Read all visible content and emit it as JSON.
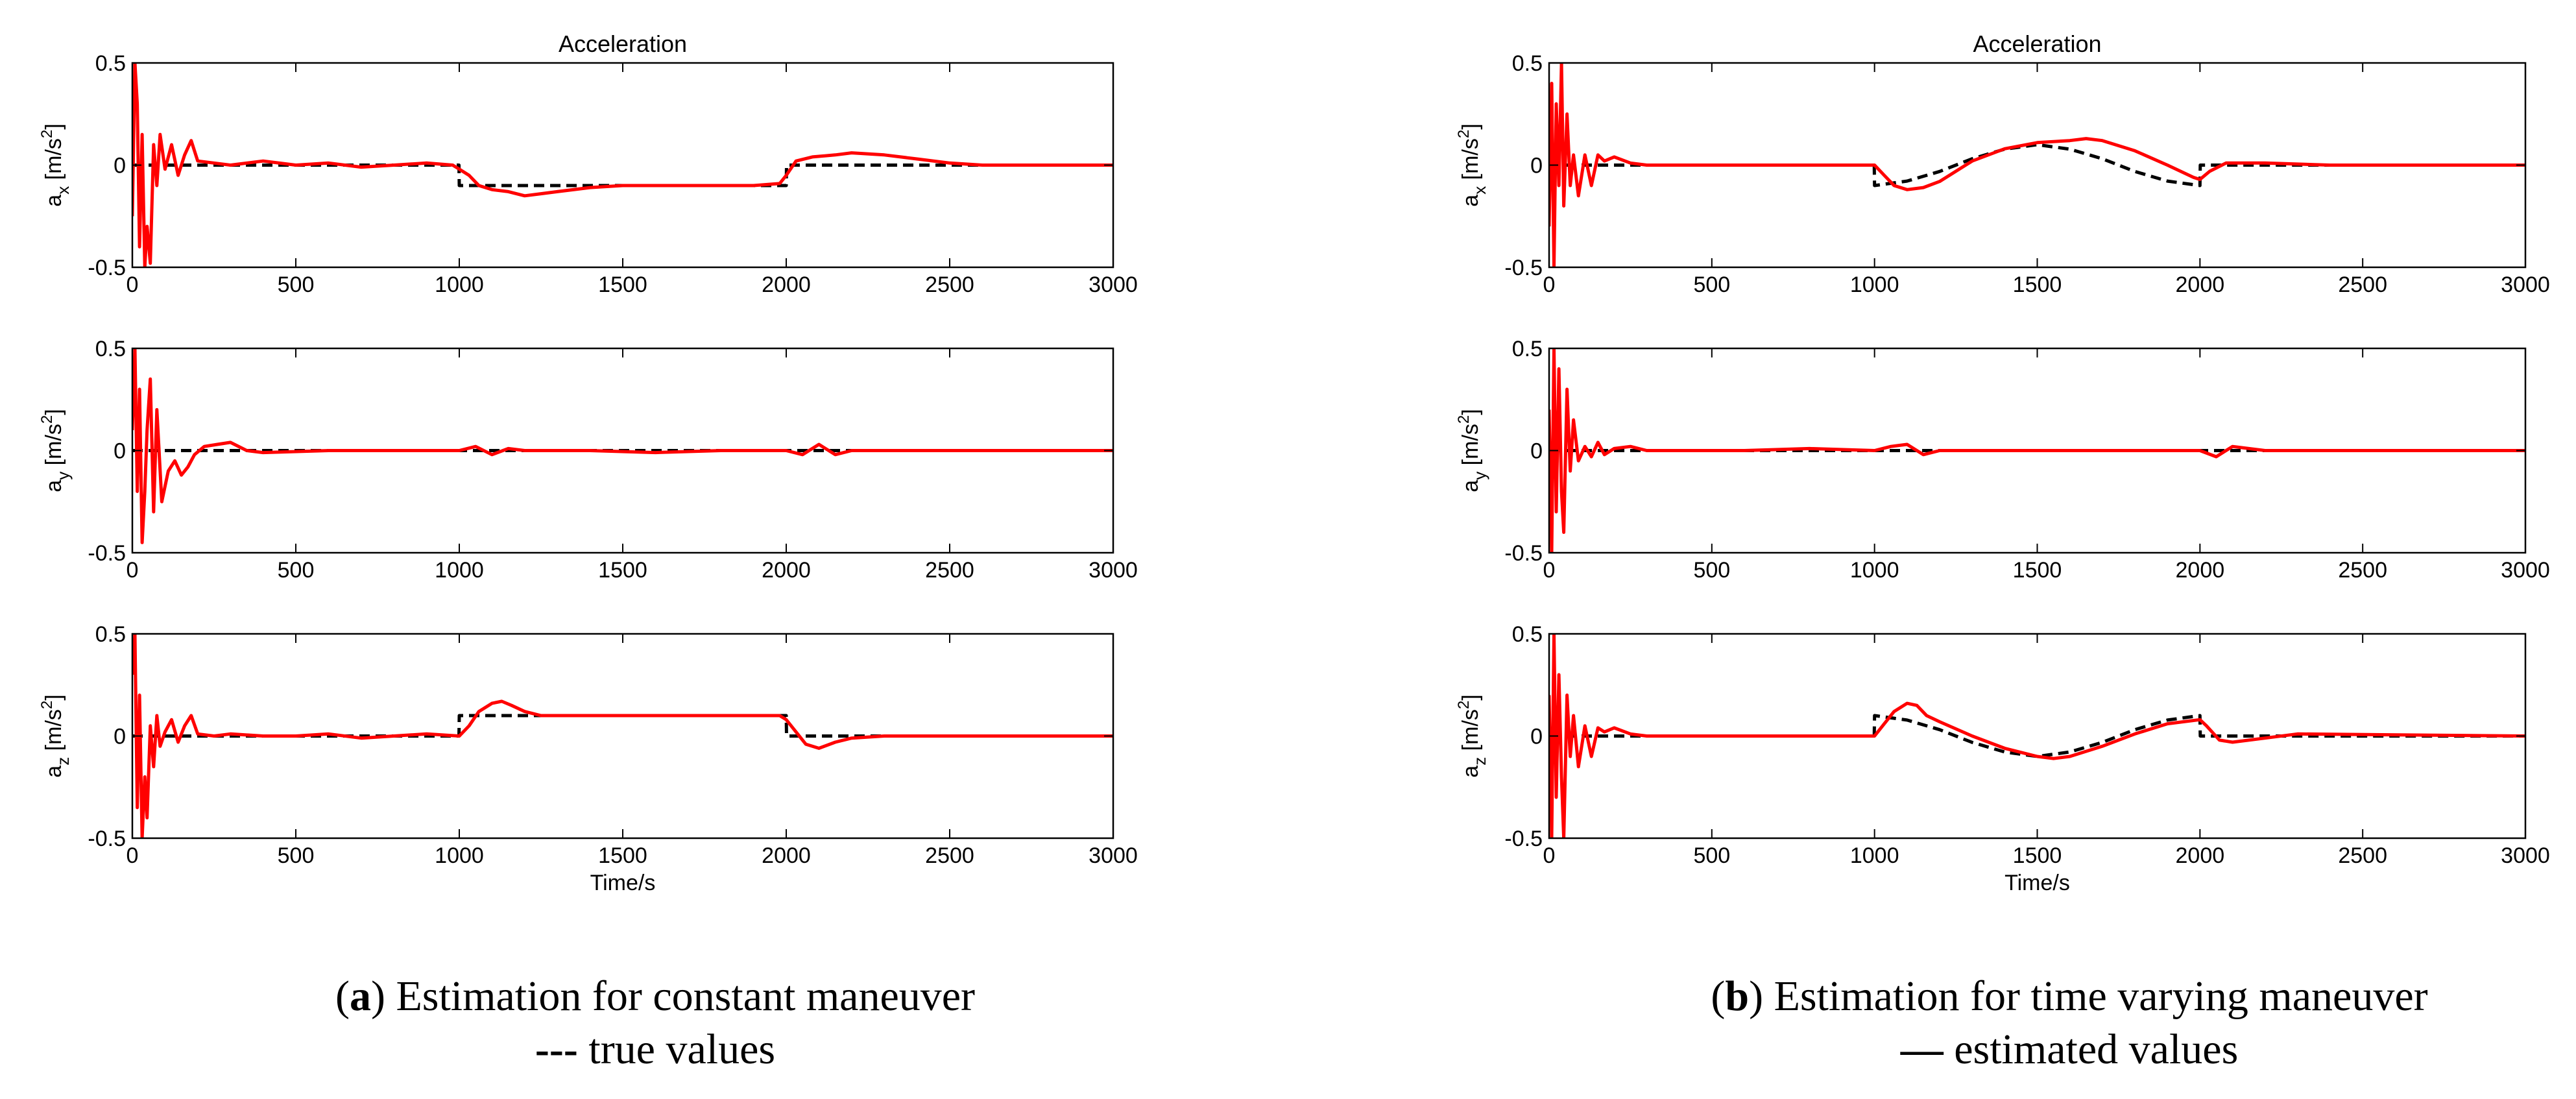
{
  "chart_data": [
    {
      "type": "line",
      "panel": "a",
      "title": "Acceleration",
      "xlabel": "Time/s",
      "xlim": [
        0,
        3000
      ],
      "xticks": [
        "0",
        "500",
        "1000",
        "1500",
        "2000",
        "2500",
        "3000"
      ],
      "subplots": [
        {
          "ylabel_main": "a",
          "ylabel_sub": "x",
          "ylabel_unit": " [m/s",
          "ylabel_sup": "2",
          "ylabel_end": "]",
          "ylim": [
            -0.5,
            0.5
          ],
          "yticks": [
            "0.5",
            "0",
            "-0.5"
          ],
          "series": [
            {
              "name": "true values",
              "style": "dashed",
              "color": "#000000",
              "x": [
                0,
                999,
                1000,
                2000,
                2001,
                3000
              ],
              "y": [
                0,
                0,
                -0.1,
                -0.1,
                0,
                0
              ]
            },
            {
              "name": "estimated values",
              "style": "solid",
              "color": "#ff0000",
              "x": [
                0,
                8,
                15,
                22,
                30,
                38,
                45,
                55,
                65,
                75,
                85,
                100,
                120,
                140,
                160,
                180,
                200,
                250,
                300,
                400,
                500,
                600,
                700,
                800,
                900,
                980,
                1000,
                1030,
                1060,
                1100,
                1150,
                1200,
                1250,
                1300,
                1400,
                1500,
                1600,
                1700,
                1800,
                1900,
                1980,
                2000,
                2030,
                2080,
                2150,
                2200,
                2300,
                2400,
                2500,
                2600,
                3000
              ],
              "y": [
                -0.25,
                0.5,
                0.3,
                -0.4,
                0.15,
                -0.5,
                -0.3,
                -0.48,
                0.1,
                -0.1,
                0.15,
                -0.02,
                0.1,
                -0.05,
                0.05,
                0.12,
                0.02,
                0.01,
                0,
                0.02,
                0,
                0.01,
                -0.01,
                0,
                0.01,
                0,
                -0.02,
                -0.05,
                -0.1,
                -0.12,
                -0.13,
                -0.15,
                -0.14,
                -0.13,
                -0.11,
                -0.1,
                -0.1,
                -0.1,
                -0.1,
                -0.1,
                -0.09,
                -0.05,
                0.02,
                0.04,
                0.05,
                0.06,
                0.05,
                0.03,
                0.01,
                0,
                0
              ]
            }
          ]
        },
        {
          "ylabel_main": "a",
          "ylabel_sub": "y",
          "ylabel_unit": " [m/s",
          "ylabel_sup": "2",
          "ylabel_end": "]",
          "ylim": [
            -0.5,
            0.5
          ],
          "yticks": [
            "0.5",
            "0",
            "-0.5"
          ],
          "series": [
            {
              "name": "true values",
              "style": "dashed",
              "color": "#000000",
              "x": [
                0,
                3000
              ],
              "y": [
                0,
                0
              ]
            },
            {
              "name": "estimated values",
              "style": "solid",
              "color": "#ff0000",
              "x": [
                0,
                8,
                15,
                22,
                30,
                38,
                45,
                55,
                65,
                75,
                90,
                110,
                130,
                150,
                170,
                190,
                220,
                260,
                300,
                350,
                400,
                600,
                800,
                1000,
                1050,
                1100,
                1150,
                1200,
                1400,
                1600,
                1800,
                2000,
                2050,
                2100,
                2150,
                2200,
                2400,
                3000
              ],
              "y": [
                0.1,
                0.5,
                -0.2,
                0.3,
                -0.45,
                -0.2,
                0.1,
                0.35,
                -0.3,
                0.2,
                -0.25,
                -0.1,
                -0.05,
                -0.12,
                -0.08,
                -0.02,
                0.02,
                0.03,
                0.04,
                0,
                -0.01,
                0,
                0,
                0,
                0.02,
                -0.02,
                0.01,
                0,
                0,
                -0.01,
                0,
                0,
                -0.02,
                0.03,
                -0.02,
                0,
                0,
                0
              ]
            }
          ]
        },
        {
          "ylabel_main": "a",
          "ylabel_sub": "z",
          "ylabel_unit": " [m/s",
          "ylabel_sup": "2",
          "ylabel_end": "]",
          "ylim": [
            -0.5,
            0.5
          ],
          "yticks": [
            "0.5",
            "0",
            "-0.5"
          ],
          "series": [
            {
              "name": "true values",
              "style": "dashed",
              "color": "#000000",
              "x": [
                0,
                999,
                1000,
                2000,
                2001,
                3000
              ],
              "y": [
                0,
                0,
                0.1,
                0.1,
                0,
                0
              ]
            },
            {
              "name": "estimated values",
              "style": "solid",
              "color": "#ff0000",
              "x": [
                0,
                8,
                15,
                22,
                30,
                38,
                45,
                55,
                65,
                75,
                85,
                100,
                120,
                140,
                160,
                180,
                200,
                250,
                300,
                400,
                500,
                600,
                700,
                800,
                900,
                1000,
                1030,
                1060,
                1100,
                1130,
                1160,
                1200,
                1250,
                1300,
                1400,
                1500,
                1700,
                1900,
                1980,
                2000,
                2030,
                2060,
                2100,
                2150,
                2200,
                2300,
                2400,
                3000
              ],
              "y": [
                0.3,
                0.5,
                -0.35,
                0.2,
                -0.5,
                -0.2,
                -0.4,
                0.05,
                -0.15,
                0.1,
                -0.05,
                0.02,
                0.08,
                -0.03,
                0.05,
                0.1,
                0.01,
                0,
                0.01,
                0,
                0,
                0.01,
                -0.01,
                0,
                0.01,
                0,
                0.05,
                0.12,
                0.16,
                0.17,
                0.15,
                0.12,
                0.1,
                0.1,
                0.1,
                0.1,
                0.1,
                0.1,
                0.1,
                0.08,
                0.02,
                -0.04,
                -0.06,
                -0.03,
                -0.01,
                0,
                0,
                0
              ]
            }
          ]
        }
      ]
    },
    {
      "type": "line",
      "panel": "b",
      "title": "Acceleration",
      "xlabel": "Time/s",
      "xlim": [
        0,
        3000
      ],
      "xticks": [
        "0",
        "500",
        "1000",
        "1500",
        "2000",
        "2500",
        "3000"
      ],
      "subplots": [
        {
          "ylabel_main": "a",
          "ylabel_sub": "x",
          "ylabel_unit": " [m/s",
          "ylabel_sup": "2",
          "ylabel_end": "]",
          "ylim": [
            -0.5,
            0.5
          ],
          "yticks": [
            "0.5",
            "0",
            "-0.5"
          ],
          "series": [
            {
              "name": "true values",
              "style": "dashed",
              "color": "#000000",
              "x": [
                0,
                999,
                1000,
                1100,
                1200,
                1300,
                1400,
                1500,
                1600,
                1700,
                1800,
                1900,
                2000,
                2001,
                3000
              ],
              "y": [
                0,
                0,
                -0.1,
                -0.078,
                -0.031,
                0.031,
                0.078,
                0.1,
                0.078,
                0.031,
                -0.031,
                -0.078,
                -0.1,
                0,
                0
              ]
            },
            {
              "name": "estimated values",
              "style": "solid",
              "color": "#ff0000",
              "x": [
                0,
                8,
                15,
                22,
                30,
                38,
                45,
                55,
                65,
                75,
                90,
                110,
                130,
                150,
                170,
                200,
                250,
                300,
                400,
                600,
                800,
                1000,
                1030,
                1060,
                1100,
                1150,
                1200,
                1300,
                1400,
                1500,
                1600,
                1650,
                1700,
                1800,
                1900,
                1980,
                2000,
                2030,
                2080,
                2200,
                2400,
                3000
              ],
              "y": [
                -0.3,
                0.4,
                -0.5,
                0.3,
                -0.1,
                0.5,
                -0.2,
                0.25,
                -0.1,
                0.05,
                -0.15,
                0.05,
                -0.1,
                0.05,
                0.02,
                0.04,
                0.01,
                0,
                0,
                0,
                0,
                0,
                -0.05,
                -0.1,
                -0.12,
                -0.11,
                -0.08,
                0.02,
                0.08,
                0.11,
                0.12,
                0.13,
                0.12,
                0.07,
                0.0,
                -0.06,
                -0.07,
                -0.03,
                0.01,
                0.01,
                0,
                0
              ]
            }
          ]
        },
        {
          "ylabel_main": "a",
          "ylabel_sub": "y",
          "ylabel_unit": " [m/s",
          "ylabel_sup": "2",
          "ylabel_end": "]",
          "ylim": [
            -0.5,
            0.5
          ],
          "yticks": [
            "0.5",
            "0",
            "-0.5"
          ],
          "series": [
            {
              "name": "true values",
              "style": "dashed",
              "color": "#000000",
              "x": [
                0,
                3000
              ],
              "y": [
                0,
                0
              ]
            },
            {
              "name": "estimated values",
              "style": "solid",
              "color": "#ff0000",
              "x": [
                0,
                8,
                15,
                22,
                30,
                38,
                45,
                55,
                65,
                75,
                90,
                110,
                130,
                150,
                170,
                200,
                250,
                300,
                400,
                600,
                800,
                1000,
                1050,
                1100,
                1150,
                1200,
                1400,
                1600,
                1800,
                2000,
                2050,
                2100,
                2200,
                2400,
                3000
              ],
              "y": [
                0.2,
                -0.5,
                0.5,
                -0.3,
                0.4,
                -0.2,
                -0.4,
                0.3,
                -0.1,
                0.15,
                -0.05,
                0.02,
                -0.03,
                0.04,
                -0.02,
                0.01,
                0.02,
                0,
                0,
                0,
                0.01,
                0,
                0.02,
                0.03,
                -0.02,
                0,
                0,
                0,
                0,
                0,
                -0.03,
                0.02,
                0,
                0,
                0
              ]
            }
          ]
        },
        {
          "ylabel_main": "a",
          "ylabel_sub": "z",
          "ylabel_unit": " [m/s",
          "ylabel_sup": "2",
          "ylabel_end": "]",
          "ylim": [
            -0.5,
            0.5
          ],
          "yticks": [
            "0.5",
            "0",
            "-0.5"
          ],
          "series": [
            {
              "name": "true values",
              "style": "dashed",
              "color": "#000000",
              "x": [
                0,
                999,
                1000,
                1100,
                1200,
                1300,
                1400,
                1500,
                1600,
                1700,
                1800,
                1900,
                2000,
                2001,
                3000
              ],
              "y": [
                0,
                0,
                0.1,
                0.078,
                0.031,
                -0.031,
                -0.078,
                -0.1,
                -0.078,
                -0.031,
                0.031,
                0.078,
                0.1,
                0,
                0
              ]
            },
            {
              "name": "estimated values",
              "style": "solid",
              "color": "#ff0000",
              "x": [
                0,
                8,
                15,
                22,
                30,
                38,
                45,
                55,
                65,
                75,
                90,
                110,
                130,
                150,
                170,
                200,
                250,
                300,
                400,
                600,
                800,
                1000,
                1030,
                1060,
                1100,
                1130,
                1160,
                1200,
                1300,
                1400,
                1500,
                1550,
                1600,
                1700,
                1800,
                1900,
                2000,
                2020,
                2060,
                2100,
                2200,
                2300,
                3000
              ],
              "y": [
                0.2,
                -0.5,
                0.5,
                -0.3,
                0.3,
                -0.2,
                -0.5,
                0.2,
                -0.1,
                0.1,
                -0.15,
                0.05,
                -0.1,
                0.04,
                0.02,
                0.04,
                0.01,
                0,
                0,
                0,
                0,
                0,
                0.06,
                0.12,
                0.16,
                0.15,
                0.1,
                0.07,
                0.0,
                -0.06,
                -0.1,
                -0.11,
                -0.1,
                -0.05,
                0.01,
                0.06,
                0.08,
                0.05,
                -0.02,
                -0.03,
                -0.01,
                0.01,
                0
              ]
            }
          ]
        }
      ]
    }
  ],
  "captions": [
    {
      "letter": "a",
      "text": " Estimation for constant maneuver",
      "legend_symbol": "---",
      "legend_text": " true values"
    },
    {
      "letter": "b",
      "text": " Estimation for time varying maneuver",
      "legend_symbol": "—",
      "legend_text": " estimated values"
    }
  ]
}
